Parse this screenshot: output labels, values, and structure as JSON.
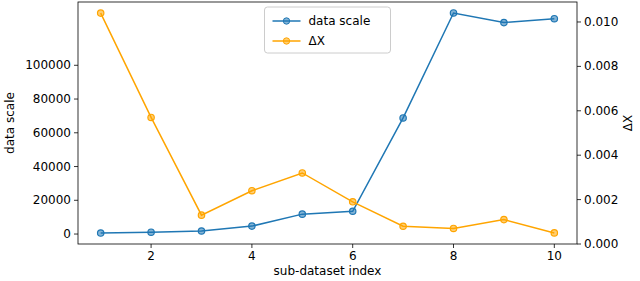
{
  "chart_data": {
    "type": "line",
    "x": [
      1,
      2,
      3,
      4,
      5,
      6,
      7,
      8,
      9,
      10
    ],
    "x_label": "sub-dataset index",
    "y_label": "data scale",
    "y2_label": "ΔX",
    "xlim": [
      0.55,
      10.45
    ],
    "xticks": [
      2,
      4,
      6,
      8,
      10
    ],
    "ylim": [
      -5900,
      137500
    ],
    "yticks": [
      0,
      20000,
      40000,
      60000,
      80000,
      100000
    ],
    "y2lim": [
      0,
      0.0109
    ],
    "y2ticks": [
      {
        "value": 0,
        "label": "0.000"
      },
      {
        "value": 0.002,
        "label": "0.002"
      },
      {
        "value": 0.004,
        "label": "0.004"
      },
      {
        "value": 0.006,
        "label": "0.006"
      },
      {
        "value": 0.008,
        "label": "0.008"
      },
      {
        "value": 0.01,
        "label": "0.010"
      }
    ],
    "legend": "upper center",
    "grid": false,
    "series": [
      {
        "name": "data scale",
        "color": "#1f77b4",
        "marker": "o",
        "axis": "y",
        "values": [
          600,
          1100,
          1800,
          4700,
          11800,
          13500,
          68800,
          131000,
          125300,
          127600
        ]
      },
      {
        "name": "ΔX",
        "color": "#ffa500",
        "marker": "o",
        "axis": "y2",
        "values": [
          0.0104,
          0.0057,
          0.0013,
          0.0024,
          0.0032,
          0.0019,
          0.0008,
          0.0007,
          0.0011,
          0.0005
        ]
      }
    ]
  }
}
